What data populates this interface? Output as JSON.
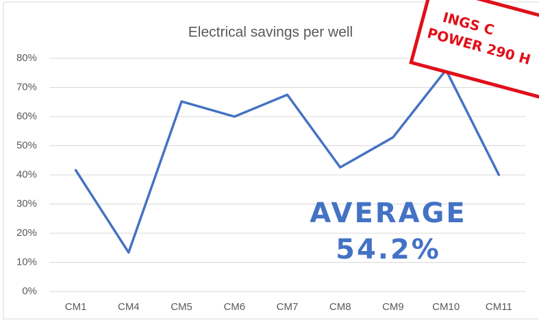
{
  "chart_data": {
    "type": "line",
    "title": "Electrical savings per well",
    "categories": [
      "CM1",
      "CM4",
      "CM5",
      "CM6",
      "CM7",
      "CM8",
      "CM9",
      "CM10",
      "CM11"
    ],
    "series": [
      {
        "name": "Electrical savings",
        "color": "#4472c4",
        "values": [
          41.6,
          13.4,
          65.2,
          60,
          67.5,
          42.6,
          52.9,
          76,
          40
        ]
      }
    ],
    "ylim": [
      0,
      80
    ],
    "yticks": [
      {
        "value": 0,
        "label": "0%"
      },
      {
        "value": 10,
        "label": "10%"
      },
      {
        "value": 20,
        "label": "20%"
      },
      {
        "value": 30,
        "label": "30%"
      },
      {
        "value": 40,
        "label": "40%"
      },
      {
        "value": 50,
        "label": "50%"
      },
      {
        "value": 60,
        "label": "60%"
      },
      {
        "value": 70,
        "label": "70%"
      },
      {
        "value": 80,
        "label": "80%"
      }
    ],
    "grid": true,
    "annotations": [
      "AVERAGE",
      "54.2%"
    ],
    "stamp": [
      "INGS C",
      "POWER 290 H"
    ]
  }
}
